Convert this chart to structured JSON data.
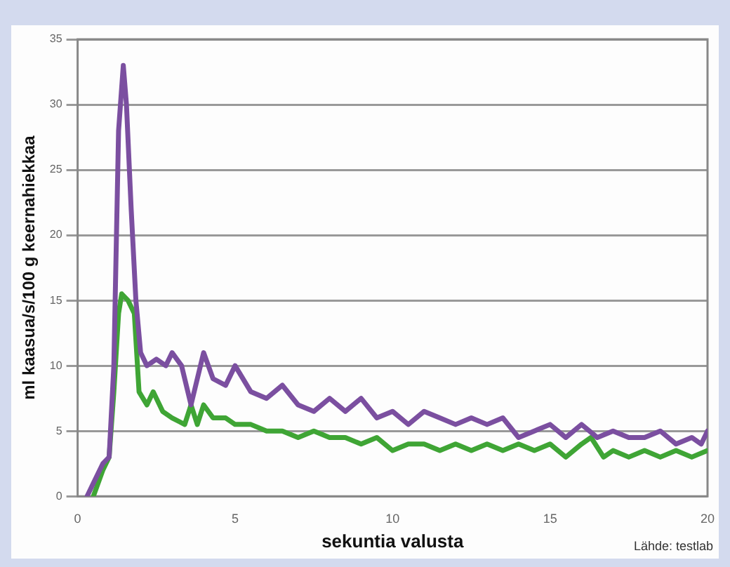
{
  "chart_data": {
    "type": "line",
    "xlabel": "sekuntia valusta",
    "ylabel": "ml kaasua/s/100 g keernahiekkaa",
    "annotations": [
      "Lähde: testlab"
    ],
    "xlim": [
      0,
      20
    ],
    "xticks": [
      0,
      5,
      10,
      15,
      20
    ],
    "ylim": [
      0,
      35
    ],
    "yticks": [
      0,
      5,
      10,
      15,
      20,
      25,
      30,
      35
    ],
    "grid": "y",
    "legend": false,
    "marker": "none",
    "line_style": "solid",
    "series": [
      {
        "color": "#7b4fa0",
        "x": [
          0.3,
          0.5,
          0.8,
          1.0,
          1.15,
          1.3,
          1.45,
          1.55,
          1.7,
          1.85,
          2.0,
          2.2,
          2.5,
          2.8,
          3.0,
          3.3,
          3.6,
          3.8,
          4.0,
          4.3,
          4.7,
          5.0,
          5.5,
          6,
          6.5,
          7,
          7.5,
          8,
          8.5,
          9,
          9.5,
          10,
          10.5,
          11,
          11.5,
          12,
          12.5,
          13,
          13.5,
          14,
          14.5,
          15,
          15.5,
          16,
          16.5,
          17,
          17.5,
          18,
          18.5,
          19,
          19.5,
          19.8,
          20
        ],
        "values": [
          0,
          1,
          2.5,
          3,
          10,
          28,
          33,
          30,
          22,
          15,
          11,
          10,
          10.5,
          10,
          11,
          10,
          7,
          9,
          11,
          9,
          8.5,
          10,
          8,
          7.5,
          8.5,
          7,
          6.5,
          7.5,
          6.5,
          7.5,
          6,
          6.5,
          5.5,
          6.5,
          6,
          5.5,
          6,
          5.5,
          6,
          4.5,
          5,
          5.5,
          4.5,
          5.5,
          4.5,
          5,
          4.5,
          4.5,
          5,
          4,
          4.5,
          4,
          5
        ]
      },
      {
        "color": "#3fa535",
        "x": [
          0.5,
          0.8,
          1.0,
          1.15,
          1.3,
          1.4,
          1.6,
          1.8,
          1.95,
          2.2,
          2.4,
          2.7,
          3.0,
          3.4,
          3.6,
          3.8,
          4.0,
          4.3,
          4.7,
          5,
          5.5,
          6,
          6.5,
          7,
          7.5,
          8,
          8.5,
          9,
          9.5,
          10,
          10.5,
          11,
          11.5,
          12,
          12.5,
          13,
          13.5,
          14,
          14.5,
          15,
          15.5,
          16,
          16.3,
          16.7,
          17,
          17.5,
          18,
          18.5,
          19,
          19.5,
          20
        ],
        "values": [
          0,
          2,
          3,
          8,
          14,
          15.5,
          15,
          14,
          8,
          7,
          8,
          6.5,
          6,
          5.5,
          7,
          5.5,
          7,
          6,
          6,
          5.5,
          5.5,
          5,
          5,
          4.5,
          5,
          4.5,
          4.5,
          4,
          4.5,
          3.5,
          4,
          4,
          3.5,
          4,
          3.5,
          4,
          3.5,
          4,
          3.5,
          4,
          3,
          4,
          4.5,
          3,
          3.5,
          3,
          3.5,
          3,
          3.5,
          3,
          3.5
        ]
      }
    ]
  }
}
